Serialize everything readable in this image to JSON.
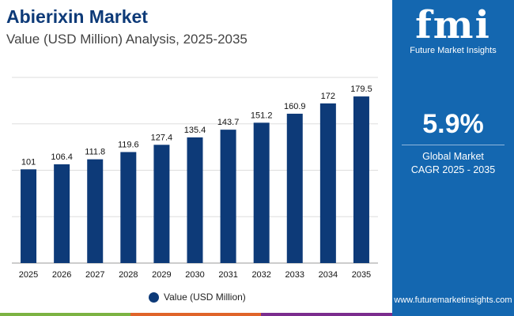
{
  "header": {
    "title": "Abierixin Market",
    "subtitle": "Value (USD Million) Analysis, 2025-2035"
  },
  "panel": {
    "logo_text": "fmi",
    "logo_tagline": "Future Market Insights",
    "cagr_value": "5.9%",
    "cagr_label_line1": "Global Market",
    "cagr_label_line2": "CAGR 2025 - 2035",
    "url": "www.futuremarketinsights.com"
  },
  "colors": {
    "bar": "#0d3a78",
    "panel": "#1467b0",
    "strip": [
      "#7cb342",
      "#e0642a",
      "#7b2d8e"
    ]
  },
  "chart_data": {
    "type": "bar",
    "categories": [
      "2025",
      "2026",
      "2027",
      "2028",
      "2029",
      "2030",
      "2031",
      "2032",
      "2033",
      "2034",
      "2035"
    ],
    "series": [
      {
        "name": "Value (USD Million)",
        "values": [
          101,
          106.4,
          111.8,
          119.6,
          127.4,
          135.4,
          143.7,
          151.2,
          160.9,
          172,
          179.5
        ]
      }
    ],
    "ylim": [
      0,
      200
    ],
    "grid": true,
    "legend": "bottom",
    "data_labels": true
  }
}
